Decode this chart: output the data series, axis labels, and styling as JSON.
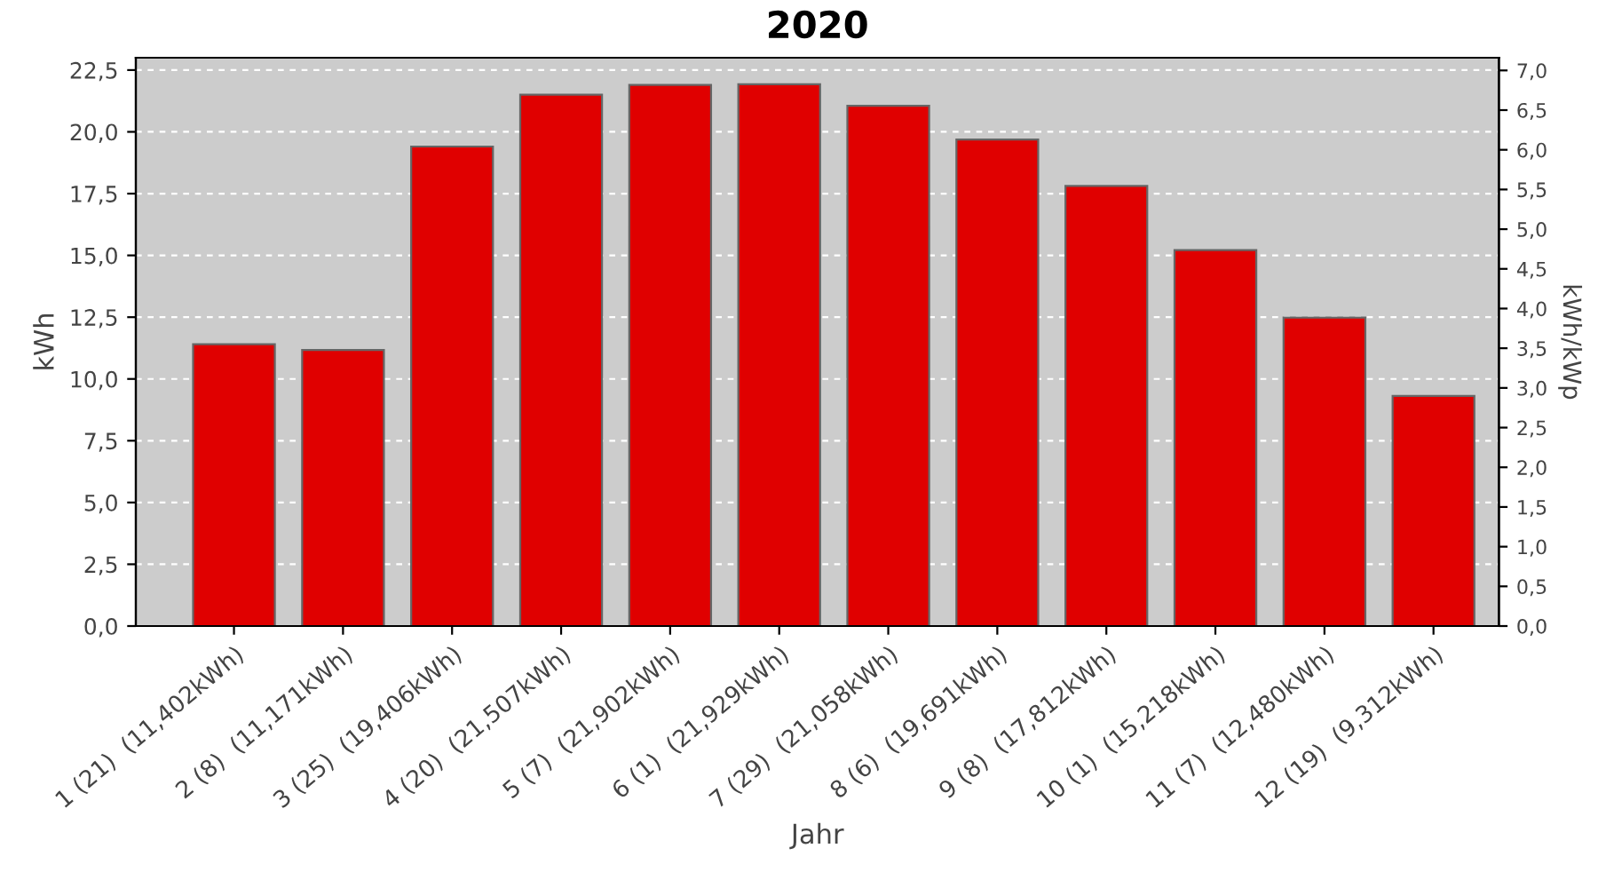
{
  "chart_data": {
    "type": "bar",
    "title": "2020",
    "xlabel": "Jahr",
    "ylabel": "kWh",
    "y2label": "kWh/kWp",
    "categories": [
      "1 (21)  (11,402kWh)",
      "2 (8)  (11,171kWh)",
      "3 (25)  (19,406kWh)",
      "4 (20)  (21,507kWh)",
      "5 (7)  (21,902kWh)",
      "6 (1)  (21,929kWh)",
      "7 (29)  (21,058kWh)",
      "8 (6)  (19,691kWh)",
      "9 (8)  (17,812kWh)",
      "10 (1)  (15,218kWh)",
      "11 (7)  (12,480kWh)",
      "12 (19)  (9,312kWh)"
    ],
    "series": [
      {
        "color": "#e00000",
        "values": [
          11.402,
          11.171,
          19.406,
          21.507,
          21.902,
          21.929,
          21.058,
          19.691,
          17.812,
          15.218,
          12.48,
          9.312
        ]
      }
    ],
    "ylim": [
      0,
      23.0
    ],
    "yticks": [
      {
        "value": 0,
        "label": "0,0"
      },
      {
        "value": 2.5,
        "label": "2,5"
      },
      {
        "value": 5,
        "label": "5,0"
      },
      {
        "value": 7.5,
        "label": "7,5"
      },
      {
        "value": 10,
        "label": "10,0"
      },
      {
        "value": 12.5,
        "label": "12,5"
      },
      {
        "value": 15,
        "label": "15,0"
      },
      {
        "value": 17.5,
        "label": "17,5"
      },
      {
        "value": 20,
        "label": "20,0"
      },
      {
        "value": 22.5,
        "label": "22,5"
      }
    ],
    "y2lim": [
      0,
      7.16
    ],
    "y2ticks": [
      {
        "value": 0,
        "label": "0,0"
      },
      {
        "value": 0.5,
        "label": "0,5"
      },
      {
        "value": 1,
        "label": "1,0"
      },
      {
        "value": 1.5,
        "label": "1,5"
      },
      {
        "value": 2,
        "label": "2,0"
      },
      {
        "value": 2.5,
        "label": "2,5"
      },
      {
        "value": 3,
        "label": "3,0"
      },
      {
        "value": 3.5,
        "label": "3,5"
      },
      {
        "value": 4,
        "label": "4,0"
      },
      {
        "value": 4.5,
        "label": "4,5"
      },
      {
        "value": 5,
        "label": "5,0"
      },
      {
        "value": 5.5,
        "label": "5,5"
      },
      {
        "value": 6,
        "label": "6,0"
      },
      {
        "value": 6.5,
        "label": "6,5"
      },
      {
        "value": 7,
        "label": "7,0"
      }
    ],
    "grid": "y"
  }
}
